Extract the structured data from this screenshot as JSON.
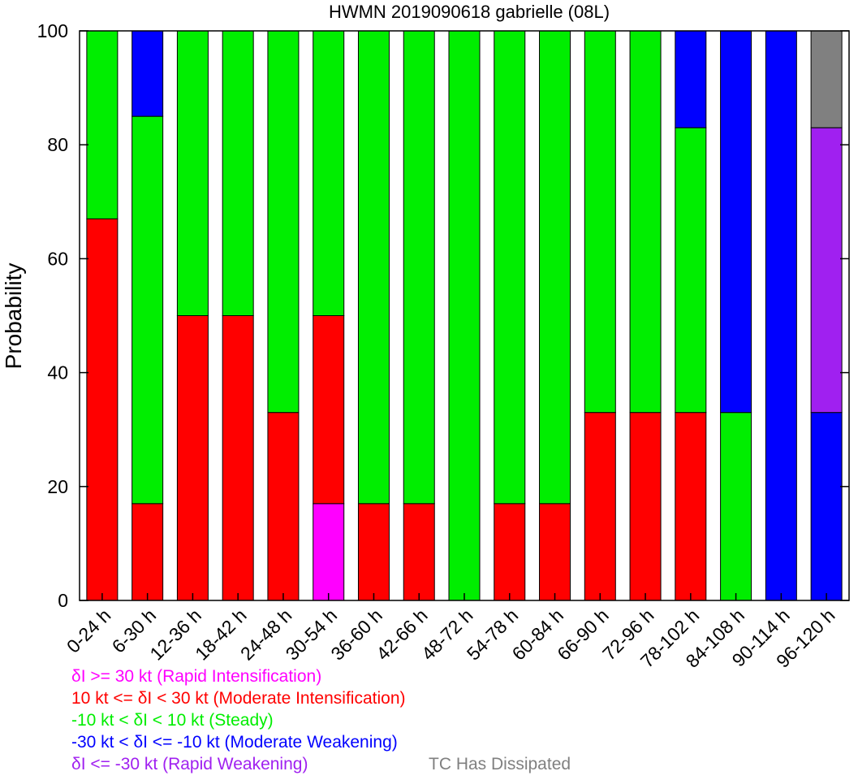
{
  "chart_data": {
    "type": "bar",
    "stacked": true,
    "title": "HWMN 2019090618 gabrielle (08L)",
    "xlabel": "",
    "ylabel": "Probability",
    "ylim": [
      0,
      100
    ],
    "yticks": [
      0,
      20,
      40,
      60,
      80,
      100
    ],
    "ytick_labels": [
      "0",
      "20",
      "40",
      "60",
      "80",
      "100"
    ],
    "categories": [
      "0-24 h",
      "6-30 h",
      "12-36 h",
      "18-42 h",
      "24-48 h",
      "30-54 h",
      "36-60 h",
      "42-66 h",
      "48-72 h",
      "54-78 h",
      "60-84 h",
      "66-90 h",
      "72-96 h",
      "78-102 h",
      "84-108 h",
      "90-114 h",
      "96-120 h"
    ],
    "series": [
      {
        "name": "δI >= 30 kt (Rapid Intensification)",
        "color": "#ff00ff",
        "values": [
          0,
          0,
          0,
          0,
          0,
          17,
          0,
          0,
          0,
          0,
          0,
          0,
          0,
          0,
          0,
          0,
          0
        ]
      },
      {
        "name": "10 kt <= δI < 30 kt (Moderate Intensification)",
        "color": "#ff0000",
        "values": [
          67,
          17,
          50,
          50,
          33,
          33,
          17,
          17,
          0,
          17,
          17,
          33,
          33,
          33,
          0,
          0,
          0
        ]
      },
      {
        "name": "-10 kt < δI < 10 kt (Steady)",
        "color": "#00ee00",
        "values": [
          33,
          68,
          50,
          50,
          67,
          50,
          83,
          83,
          100,
          83,
          83,
          67,
          67,
          50,
          33,
          0,
          0
        ]
      },
      {
        "name": "-30 kt < δI <= -10 kt (Moderate Weakening)",
        "color": "#0000ff",
        "values": [
          0,
          15,
          0,
          0,
          0,
          0,
          0,
          0,
          0,
          0,
          0,
          0,
          0,
          17,
          67,
          100,
          33
        ]
      },
      {
        "name": "δI <= -30 kt (Rapid Weakening)",
        "color": "#a020f0",
        "values": [
          0,
          0,
          0,
          0,
          0,
          0,
          0,
          0,
          0,
          0,
          0,
          0,
          0,
          0,
          0,
          0,
          50
        ]
      },
      {
        "name": "TC Has Dissipated",
        "color": "#808080",
        "values": [
          0,
          0,
          0,
          0,
          0,
          0,
          0,
          0,
          0,
          0,
          0,
          0,
          0,
          0,
          0,
          0,
          17
        ]
      }
    ]
  },
  "legend": {
    "ri_label": "δI >= 30 kt (Rapid Intensification)",
    "mi_label": "10 kt <= δI < 30 kt (Moderate Intensification)",
    "steady_label": "-10 kt < δI < 10 kt (Steady)",
    "mw_label": "-30 kt < δI <= -10 kt (Moderate Weakening)",
    "rw_label": "δI <= -30 kt (Rapid Weakening)",
    "dissipated_label": "TC Has Dissipated"
  },
  "colors": {
    "ri": "#ff00ff",
    "mi": "#ff0000",
    "steady": "#00ee00",
    "mw": "#0000ff",
    "rw": "#a020f0",
    "dissipated": "#808080"
  }
}
